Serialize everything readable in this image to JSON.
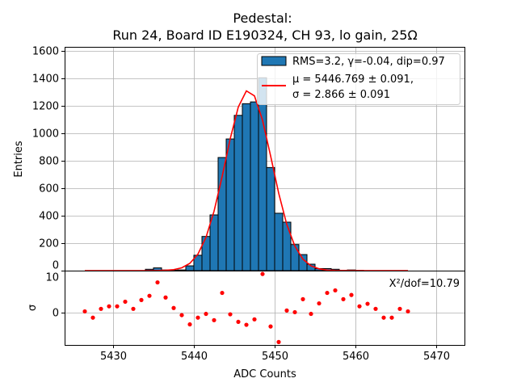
{
  "chart_data": [
    {
      "type": "bar",
      "title": "Pedestal:",
      "subtitle": "Run 24, Board ID E190324, CH 93, lo gain, 25Ω",
      "ylabel": "Entries",
      "xlim": [
        5424,
        5473.5
      ],
      "ylim": [
        0,
        1630
      ],
      "yticks": [
        "0",
        "200",
        "400",
        "600",
        "800",
        "1000",
        "1200",
        "1400",
        "1600"
      ],
      "ytick_values": [
        0,
        200,
        400,
        600,
        800,
        1000,
        1200,
        1400,
        1600
      ],
      "grid": true,
      "bin_edges_start": 5434,
      "bin_width": 1,
      "values": [
        10,
        20,
        5,
        3,
        5,
        35,
        112,
        249,
        406,
        824,
        959,
        1131,
        1216,
        1229,
        1405,
        751,
        418,
        353,
        190,
        117,
        47,
        15,
        15,
        10,
        3,
        5,
        2
      ],
      "bar_color": "#1f77b4",
      "fit": {
        "mu": 5446.769,
        "sigma": 2.866,
        "peak": 1315,
        "x_start": 5426.5,
        "x_end": 5466.5,
        "color": "#ff0000"
      },
      "legend": {
        "placement": "top-right",
        "entries": [
          "RMS=3.2, γ=-0.04, dip=0.97",
          "μ = 5446.769 ± 0.091,",
          "σ = 2.866 ± 0.091"
        ]
      }
    },
    {
      "type": "scatter",
      "xlabel": "ADC Counts",
      "ylabel": "σ",
      "xlim": [
        5424,
        5473.5
      ],
      "ylim": [
        -7.7,
        10
      ],
      "xticks": [
        "5430",
        "5440",
        "5450",
        "5460",
        "5470"
      ],
      "xtick_values": [
        5430,
        5440,
        5450,
        5460,
        5470
      ],
      "yticks": [
        "0",
        "10"
      ],
      "ytick_values": [
        0,
        10
      ],
      "annotation": "X²/dof=10.79",
      "x_start": 5426.5,
      "residuals": [
        0.3,
        -1.2,
        0.9,
        1.5,
        1.5,
        2.6,
        0.9,
        3.0,
        4.0,
        7.2,
        3.6,
        1.1,
        -0.6,
        -2.8,
        -1.2,
        -0.3,
        -1.8,
        4.7,
        -0.4,
        -2.2,
        -2.9,
        -1.6,
        9.2,
        -3.3,
        -7.0,
        0.5,
        0.1,
        3.2,
        -0.3,
        2.2,
        4.7,
        5.3,
        3.2,
        4.2,
        1.5,
        2.1,
        0.9,
        -1.2,
        -1.2,
        0.9,
        0.3
      ],
      "point_color": "#ff0000"
    }
  ]
}
